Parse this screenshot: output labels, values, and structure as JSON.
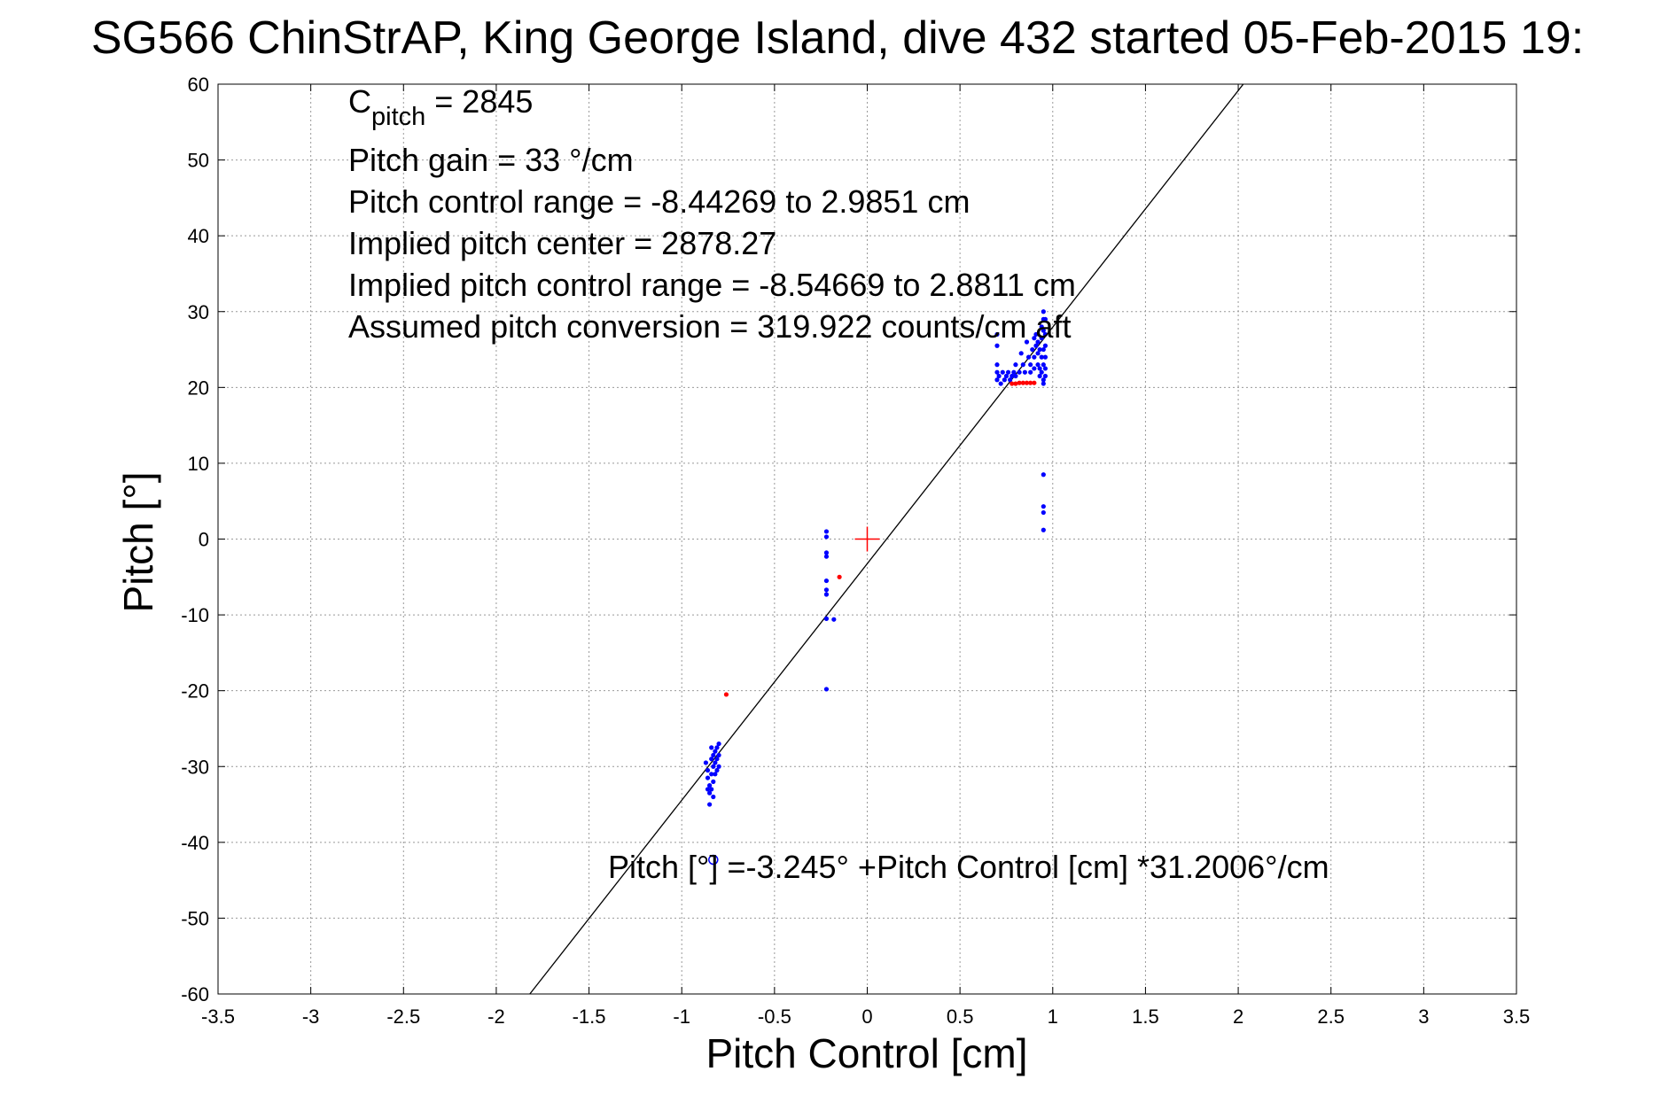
{
  "chart_data": {
    "type": "scatter",
    "title": "SG566 ChinStrAP, King George Island, dive 432 started 05-Feb-2015 19:",
    "xlabel": "Pitch Control [cm]",
    "ylabel": "Pitch [°]",
    "xlim": [
      -3.5,
      3.5
    ],
    "ylim": [
      -60,
      60
    ],
    "grid": true,
    "x_ticks": [
      -3.5,
      -3,
      -2.5,
      -2,
      -1.5,
      -1,
      -0.5,
      0,
      0.5,
      1,
      1.5,
      2,
      2.5,
      3,
      3.5
    ],
    "x_tick_labels": [
      "-3.5",
      "-3",
      "-2.5",
      "-2",
      "-1.5",
      "-1",
      "-0.5",
      "0",
      "0.5",
      "1",
      "1.5",
      "2",
      "2.5",
      "3",
      "3.5"
    ],
    "y_ticks": [
      60,
      50,
      40,
      30,
      20,
      10,
      0,
      -10,
      -20,
      -30,
      -40,
      -50,
      -60
    ],
    "y_tick_labels": [
      "60",
      "50",
      "40",
      "30",
      "20",
      "10",
      "0",
      "-10",
      "-20",
      "-30",
      "-40",
      "-50",
      "-60"
    ],
    "fit_line": {
      "intercept": -3.245,
      "slope": 31.2006
    },
    "annotations": {
      "c_pitch_main": "C",
      "c_pitch_sub": "pitch",
      "c_pitch_value": " = 2845",
      "pitch_gain": "Pitch gain = 33 °/cm",
      "pitch_control_range": "Pitch control range = -8.44269 to 2.9851 cm",
      "implied_pitch_center": "Implied pitch center = 2878.27",
      "implied_pitch_control_range": "Implied pitch control range = -8.54669 to 2.8811 cm",
      "assumed_pitch_conversion": "Assumed pitch conversion = 319.922 counts/cm aft",
      "fit_equation": "Pitch [°] =-3.245° +Pitch Control [cm] *31.2006°/cm"
    },
    "center_marker": {
      "x": 0,
      "y": 0,
      "color": "#ff0000"
    },
    "open_circle_marker": {
      "x": -0.83,
      "y": -42.3,
      "color": "#0000ff"
    },
    "series": [
      {
        "color": "#0000ff",
        "points": [
          [
            -0.87,
            -29.5
          ],
          [
            -0.86,
            -30.5
          ],
          [
            -0.86,
            -31.5
          ],
          [
            -0.85,
            -32.5
          ],
          [
            -0.85,
            -33.5
          ],
          [
            -0.85,
            -35.0
          ],
          [
            -0.84,
            -29.0
          ],
          [
            -0.84,
            -31.0
          ],
          [
            -0.84,
            -33.0
          ],
          [
            -0.83,
            -28.5
          ],
          [
            -0.83,
            -30.0
          ],
          [
            -0.83,
            -32.0
          ],
          [
            -0.82,
            -28.0
          ],
          [
            -0.82,
            -29.5
          ],
          [
            -0.82,
            -31.0
          ],
          [
            -0.81,
            -27.5
          ],
          [
            -0.81,
            -29.0
          ],
          [
            -0.81,
            -30.5
          ],
          [
            -0.8,
            -27.0
          ],
          [
            -0.8,
            -28.5
          ],
          [
            -0.8,
            -30.0
          ],
          [
            -0.83,
            -34.0
          ],
          [
            -0.86,
            -33.0
          ],
          [
            -0.84,
            -27.5
          ],
          [
            -0.22,
            1.0
          ],
          [
            -0.22,
            0.3
          ],
          [
            -0.22,
            -1.8
          ],
          [
            -0.22,
            -2.3
          ],
          [
            -0.22,
            -5.5
          ],
          [
            -0.22,
            -6.7
          ],
          [
            -0.22,
            -7.3
          ],
          [
            -0.22,
            -10.5
          ],
          [
            -0.18,
            -10.6
          ],
          [
            -0.22,
            -19.8
          ],
          [
            0.95,
            8.5
          ],
          [
            0.95,
            4.3
          ],
          [
            0.95,
            3.5
          ],
          [
            0.95,
            1.2
          ],
          [
            0.7,
            27.0
          ],
          [
            0.7,
            25.5
          ],
          [
            0.7,
            23.0
          ],
          [
            0.7,
            22.0
          ],
          [
            0.7,
            21.0
          ],
          [
            0.71,
            21.5
          ],
          [
            0.72,
            20.5
          ],
          [
            0.73,
            22.0
          ],
          [
            0.74,
            21.0
          ],
          [
            0.75,
            21.5
          ],
          [
            0.76,
            22.0
          ],
          [
            0.77,
            21.0
          ],
          [
            0.78,
            21.5
          ],
          [
            0.79,
            22.0
          ],
          [
            0.8,
            21.5
          ],
          [
            0.8,
            23.0
          ],
          [
            0.82,
            22.0
          ],
          [
            0.83,
            24.5
          ],
          [
            0.84,
            23.0
          ],
          [
            0.85,
            22.0
          ],
          [
            0.86,
            26.0
          ],
          [
            0.87,
            24.0
          ],
          [
            0.88,
            23.0
          ],
          [
            0.88,
            22.0
          ],
          [
            0.89,
            25.0
          ],
          [
            0.9,
            26.5
          ],
          [
            0.9,
            24.0
          ],
          [
            0.9,
            22.5
          ],
          [
            0.91,
            27.0
          ],
          [
            0.91,
            25.5
          ],
          [
            0.92,
            26.0
          ],
          [
            0.92,
            24.5
          ],
          [
            0.92,
            23.0
          ],
          [
            0.93,
            25.0
          ],
          [
            0.93,
            22.5
          ],
          [
            0.93,
            21.5
          ],
          [
            0.94,
            28.0
          ],
          [
            0.94,
            26.5
          ],
          [
            0.94,
            24.0
          ],
          [
            0.94,
            22.0
          ],
          [
            0.95,
            30.0
          ],
          [
            0.95,
            29.0
          ],
          [
            0.95,
            27.5
          ],
          [
            0.95,
            25.0
          ],
          [
            0.95,
            23.0
          ],
          [
            0.95,
            21.0
          ],
          [
            0.95,
            20.5
          ],
          [
            0.96,
            29.0
          ],
          [
            0.96,
            27.0
          ],
          [
            0.96,
            25.5
          ],
          [
            0.96,
            24.0
          ],
          [
            0.96,
            22.5
          ],
          [
            0.96,
            21.5
          ]
        ]
      },
      {
        "color": "#ff0000",
        "points": [
          [
            -0.76,
            -20.5
          ],
          [
            -0.15,
            -5.0
          ],
          [
            0.78,
            20.5
          ],
          [
            0.8,
            20.5
          ],
          [
            0.82,
            20.6
          ],
          [
            0.84,
            20.6
          ],
          [
            0.86,
            20.6
          ],
          [
            0.88,
            20.6
          ],
          [
            0.9,
            20.6
          ]
        ]
      }
    ]
  }
}
